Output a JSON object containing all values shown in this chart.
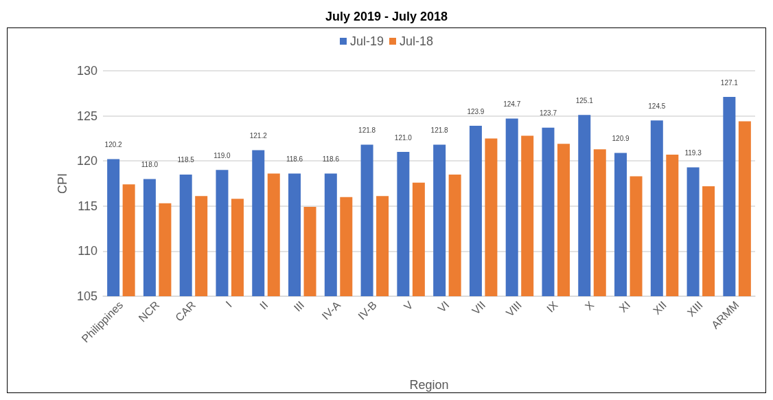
{
  "chart_data": {
    "type": "bar",
    "title": "July 2019 - July 2018",
    "xlabel": "Region",
    "ylabel": "CPI",
    "categories": [
      "Philippines",
      "NCR",
      "CAR",
      "I",
      "II",
      "III",
      "IV-A",
      "IV-B",
      "V",
      "VI",
      "VII",
      "VIII",
      "IX",
      "X",
      "XI",
      "XII",
      "XIII",
      "ARMM"
    ],
    "series": [
      {
        "name": "Jul-19",
        "color": "#4472c4",
        "values": [
          120.2,
          118.0,
          118.5,
          119.0,
          121.2,
          118.6,
          118.6,
          121.8,
          121.0,
          121.8,
          123.9,
          124.7,
          123.7,
          125.1,
          120.9,
          124.5,
          119.3,
          127.1
        ],
        "value_labels": [
          "120.2",
          "118.0",
          "118.5",
          "119.0",
          "121.2",
          "118.6",
          "118.6",
          "121.8",
          "121.0",
          "121.8",
          "123.9",
          "124.7",
          "123.7",
          "125.1",
          "120.9",
          "124.5",
          "119.3",
          "127.1"
        ]
      },
      {
        "name": "Jul-18",
        "color": "#ed7d31",
        "values": [
          117.4,
          115.3,
          116.1,
          115.8,
          118.6,
          114.9,
          116.0,
          116.1,
          117.6,
          118.5,
          122.5,
          122.8,
          121.9,
          121.3,
          118.3,
          120.7,
          117.2,
          124.4
        ]
      }
    ],
    "ylim": [
      105,
      130
    ],
    "yticks": [
      105,
      110,
      115,
      120,
      125,
      130
    ],
    "grid": "y",
    "legend": "top"
  }
}
